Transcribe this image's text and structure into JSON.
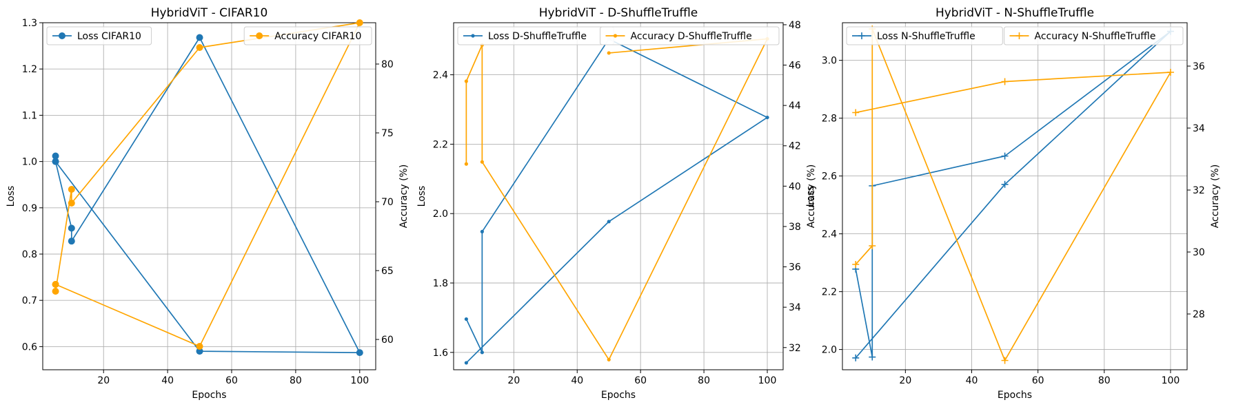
{
  "chart_data": [
    {
      "type": "line",
      "title": "HybridViT - CIFAR10",
      "xlabel": "Epochs",
      "ylabel": "Loss",
      "y2label": "Accuracy (%)",
      "xlim": [
        1,
        105
      ],
      "ylim": [
        0.55,
        1.3
      ],
      "y2lim": [
        57.8,
        83.0
      ],
      "xticks": [
        20,
        40,
        60,
        80,
        100
      ],
      "yticks": [
        0.6,
        0.7,
        0.8,
        0.9,
        1.0,
        1.1,
        1.2,
        1.3
      ],
      "y2ticks": [
        60,
        65,
        70,
        75,
        80
      ],
      "ytick_labels": [
        "0.6",
        "0.7",
        "0.8",
        "0.9",
        "1.0",
        "1.1",
        "1.2",
        "1.3"
      ],
      "marker": "circle",
      "grid": true,
      "series": [
        {
          "name": "Loss CIFAR10",
          "axis": "left",
          "color": "#1f77b4",
          "legend": "upper-left",
          "x": [
            5,
            5,
            10,
            10,
            50,
            100,
            50,
            5
          ],
          "y": [
            1.012,
            1.0,
            0.856,
            0.828,
            1.268,
            0.587,
            0.59,
            1.0
          ]
        },
        {
          "name": "Accuracy CIFAR10",
          "axis": "right",
          "color": "#ffa500",
          "legend": "upper-right",
          "x": [
            5,
            5,
            10,
            10,
            50,
            100,
            50,
            5
          ],
          "y": [
            64.0,
            63.5,
            70.9,
            69.9,
            81.2,
            83.0,
            59.5,
            64.0
          ]
        }
      ]
    },
    {
      "type": "line",
      "title": "HybridViT - D-ShuffleTruffle",
      "xlabel": "Epochs",
      "ylabel": "Loss",
      "y2label": "Accuracy (%)",
      "xlim": [
        1,
        105
      ],
      "ylim": [
        1.55,
        2.55
      ],
      "y2lim": [
        30.9,
        48.1
      ],
      "xticks": [
        20,
        40,
        60,
        80,
        100
      ],
      "yticks": [
        1.6,
        1.8,
        2.0,
        2.2,
        2.4
      ],
      "y2ticks": [
        32,
        34,
        36,
        38,
        40,
        42,
        44,
        46,
        48
      ],
      "ytick_labels": [
        "1.6",
        "1.8",
        "2.0",
        "2.2",
        "2.4"
      ],
      "marker": "dot",
      "grid": true,
      "series": [
        {
          "name": "Loss D-ShuffleTruffle",
          "axis": "left",
          "color": "#1f77b4",
          "legend": "upper-left",
          "x": [
            5,
            10,
            10,
            50,
            100,
            50,
            5
          ],
          "y": [
            1.696,
            1.6,
            1.948,
            2.503,
            2.277,
            1.977,
            1.57
          ]
        },
        {
          "name": "Accuracy D-ShuffleTruffle",
          "axis": "right",
          "color": "#ffa500",
          "legend": "upper-right",
          "x": [
            5,
            5,
            10,
            10,
            50,
            100,
            50
          ],
          "y": [
            41.1,
            45.2,
            47.0,
            41.2,
            31.4,
            47.3,
            46.6
          ]
        }
      ]
    },
    {
      "type": "line",
      "title": "HybridViT - N-ShuffleTruffle",
      "xlabel": "Epochs",
      "ylabel": "Loss",
      "y2label": "Accuracy (%)",
      "xlim": [
        1,
        105
      ],
      "ylim": [
        1.93,
        3.13
      ],
      "y2lim": [
        26.2,
        37.4
      ],
      "xticks": [
        20,
        40,
        60,
        80,
        100
      ],
      "yticks": [
        2.0,
        2.2,
        2.4,
        2.6,
        2.8,
        3.0
      ],
      "y2ticks": [
        28,
        30,
        32,
        34,
        36
      ],
      "ytick_labels": [
        "2.0",
        "2.2",
        "2.4",
        "2.6",
        "2.8",
        "3.0"
      ],
      "marker": "plus",
      "grid": true,
      "series": [
        {
          "name": "Loss N-ShuffleTruffle",
          "axis": "left",
          "color": "#1f77b4",
          "legend": "upper-left",
          "x": [
            5,
            10,
            10,
            50,
            100,
            50,
            5
          ],
          "y": [
            2.278,
            1.974,
            2.566,
            2.669,
            3.1,
            2.571,
            1.971
          ]
        },
        {
          "name": "Accuracy N-ShuffleTruffle",
          "axis": "right",
          "color": "#ffa500",
          "legend": "upper-right",
          "x": [
            5,
            10,
            10,
            50,
            100,
            50,
            5
          ],
          "y": [
            29.6,
            30.2,
            37.2,
            26.5,
            35.8,
            35.5,
            34.5
          ]
        }
      ]
    }
  ]
}
